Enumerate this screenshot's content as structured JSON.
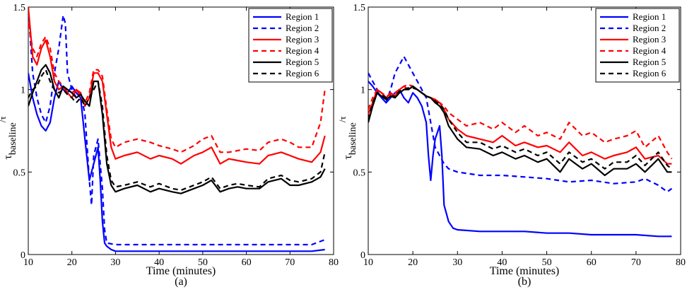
{
  "chart_data": [
    {
      "type": "line",
      "panel_label": "(a)",
      "xlabel": "Time (minutes)",
      "ylabel_main": "τ",
      "ylabel_sub": "baseline",
      "ylabel_tail": "/τ",
      "xlim": [
        10,
        80
      ],
      "ylim": [
        0,
        1.5
      ],
      "xticks": [
        10,
        20,
        30,
        40,
        50,
        60,
        70,
        80
      ],
      "yticks": [
        0,
        0.5,
        1,
        1.5
      ],
      "ytick_labels": [
        "0",
        "0.5",
        "1",
        "1.5"
      ],
      "legend_position": "top-right",
      "series": [
        {
          "name": "Region 1",
          "color": "#0000ff",
          "dash": "solid",
          "x": [
            10,
            11,
            12,
            13,
            14,
            15,
            16,
            17,
            18,
            19,
            20,
            21,
            22,
            23,
            24,
            25,
            26,
            26.5,
            27,
            27.5,
            28,
            29,
            30,
            35,
            40,
            45,
            50,
            55,
            60,
            65,
            70,
            75,
            78
          ],
          "y": [
            1.1,
            0.95,
            0.85,
            0.78,
            0.75,
            0.8,
            0.95,
            1.05,
            1.0,
            0.98,
            1.02,
            0.98,
            0.95,
            0.7,
            0.45,
            0.55,
            0.65,
            0.45,
            0.2,
            0.07,
            0.05,
            0.03,
            0.02,
            0.02,
            0.02,
            0.02,
            0.02,
            0.02,
            0.02,
            0.02,
            0.02,
            0.02,
            0.03
          ]
        },
        {
          "name": "Region 2",
          "color": "#0000ff",
          "dash": "dashed",
          "x": [
            10,
            11,
            12,
            13,
            14,
            15,
            16,
            17,
            18,
            18.5,
            19,
            20,
            21,
            22,
            23,
            24,
            24.5,
            25,
            26,
            27,
            27.5,
            28,
            30,
            35,
            40,
            45,
            50,
            55,
            60,
            65,
            70,
            75,
            78
          ],
          "y": [
            1.5,
            1.1,
            0.95,
            0.85,
            0.8,
            0.9,
            1.1,
            1.25,
            1.45,
            1.4,
            1.1,
            1.0,
            0.95,
            0.98,
            0.85,
            0.45,
            0.3,
            0.6,
            0.7,
            0.4,
            0.15,
            0.07,
            0.06,
            0.06,
            0.06,
            0.06,
            0.06,
            0.06,
            0.06,
            0.06,
            0.06,
            0.06,
            0.09
          ]
        },
        {
          "name": "Region 3",
          "color": "#ff0000",
          "dash": "solid",
          "x": [
            10,
            11,
            12,
            13,
            14,
            15,
            16,
            17,
            18,
            19,
            20,
            21,
            22,
            23,
            24,
            25,
            26,
            27,
            28,
            29,
            30,
            32,
            35,
            38,
            40,
            43,
            45,
            48,
            50,
            52,
            54,
            56,
            58,
            60,
            63,
            65,
            68,
            70,
            72,
            75,
            77,
            78
          ],
          "y": [
            1.5,
            1.2,
            1.15,
            1.25,
            1.3,
            1.2,
            1.05,
            1.0,
            1.02,
            0.98,
            0.95,
            1.0,
            0.98,
            0.9,
            0.95,
            1.1,
            1.1,
            1.05,
            0.85,
            0.65,
            0.58,
            0.6,
            0.62,
            0.58,
            0.6,
            0.58,
            0.55,
            0.6,
            0.62,
            0.65,
            0.55,
            0.58,
            0.57,
            0.56,
            0.55,
            0.6,
            0.62,
            0.6,
            0.58,
            0.56,
            0.62,
            0.72
          ]
        },
        {
          "name": "Region 4",
          "color": "#ff0000",
          "dash": "dashed",
          "x": [
            10,
            11,
            12,
            13,
            14,
            15,
            16,
            17,
            18,
            19,
            20,
            21,
            22,
            23,
            24,
            25,
            26,
            27,
            28,
            29,
            30,
            32,
            35,
            38,
            40,
            43,
            45,
            48,
            50,
            52,
            54,
            56,
            58,
            60,
            63,
            65,
            68,
            70,
            72,
            75,
            77,
            78
          ],
          "y": [
            1.4,
            1.25,
            1.2,
            1.28,
            1.32,
            1.25,
            1.1,
            1.05,
            1.02,
            1.0,
            0.98,
            1.0,
            0.96,
            0.92,
            0.98,
            1.12,
            1.12,
            1.08,
            0.88,
            0.7,
            0.65,
            0.68,
            0.7,
            0.68,
            0.66,
            0.64,
            0.62,
            0.66,
            0.7,
            0.72,
            0.62,
            0.62,
            0.63,
            0.64,
            0.63,
            0.68,
            0.7,
            0.68,
            0.65,
            0.65,
            0.8,
            1.0
          ]
        },
        {
          "name": "Region 5",
          "color": "#000000",
          "dash": "solid",
          "x": [
            10,
            11,
            12,
            13,
            14,
            15,
            16,
            17,
            18,
            19,
            20,
            21,
            22,
            23,
            24,
            25,
            26,
            27,
            28,
            29,
            30,
            32,
            35,
            38,
            40,
            43,
            45,
            48,
            50,
            52,
            54,
            56,
            58,
            60,
            63,
            65,
            68,
            70,
            72,
            75,
            77,
            78
          ],
          "y": [
            0.9,
            0.98,
            1.05,
            1.12,
            1.15,
            1.1,
            1.0,
            0.95,
            1.02,
            1.0,
            0.98,
            0.95,
            0.97,
            0.93,
            0.9,
            1.05,
            1.05,
            0.85,
            0.55,
            0.42,
            0.38,
            0.4,
            0.42,
            0.38,
            0.4,
            0.38,
            0.37,
            0.4,
            0.42,
            0.45,
            0.38,
            0.4,
            0.41,
            0.4,
            0.4,
            0.44,
            0.46,
            0.42,
            0.42,
            0.44,
            0.47,
            0.52
          ]
        },
        {
          "name": "Region 6",
          "color": "#000000",
          "dash": "dashed",
          "x": [
            10,
            11,
            12,
            13,
            14,
            15,
            16,
            17,
            18,
            19,
            20,
            21,
            22,
            23,
            24,
            25,
            26,
            27,
            28,
            29,
            30,
            32,
            35,
            38,
            40,
            43,
            45,
            48,
            50,
            52,
            54,
            56,
            58,
            60,
            63,
            65,
            68,
            70,
            72,
            75,
            77,
            78
          ],
          "y": [
            0.95,
            1.0,
            1.02,
            1.08,
            1.12,
            1.05,
            1.0,
            0.98,
            1.0,
            0.97,
            0.95,
            0.92,
            0.95,
            0.9,
            0.95,
            1.0,
            1.05,
            0.9,
            0.6,
            0.45,
            0.41,
            0.42,
            0.44,
            0.41,
            0.43,
            0.4,
            0.39,
            0.42,
            0.44,
            0.47,
            0.4,
            0.42,
            0.43,
            0.42,
            0.41,
            0.46,
            0.48,
            0.45,
            0.44,
            0.46,
            0.5,
            0.62
          ]
        }
      ]
    },
    {
      "type": "line",
      "panel_label": "(b)",
      "xlabel": "Time (minutes)",
      "ylabel_main": "τ",
      "ylabel_sub": "baseline",
      "ylabel_tail": "/τ",
      "xlim": [
        10,
        80
      ],
      "ylim": [
        0,
        1.5
      ],
      "xticks": [
        10,
        20,
        30,
        40,
        50,
        60,
        70,
        80
      ],
      "yticks": [
        0,
        0.5,
        1,
        1.5
      ],
      "ytick_labels": [
        "0",
        "0.5",
        "1",
        "1.5"
      ],
      "legend_position": "top-right",
      "series": [
        {
          "name": "Region 1",
          "color": "#0000ff",
          "dash": "solid",
          "x": [
            10,
            11,
            12,
            13,
            14,
            15,
            16,
            17,
            18,
            19,
            20,
            21,
            22,
            23,
            23.5,
            24,
            24.5,
            25,
            26,
            26.5,
            27,
            28,
            29,
            30,
            35,
            40,
            45,
            50,
            55,
            60,
            65,
            70,
            75,
            78
          ],
          "y": [
            1.05,
            1.02,
            0.98,
            0.95,
            0.92,
            0.95,
            0.98,
            1.0,
            0.95,
            0.92,
            0.98,
            0.95,
            0.9,
            0.8,
            0.6,
            0.45,
            0.6,
            0.7,
            0.78,
            0.6,
            0.3,
            0.2,
            0.16,
            0.15,
            0.14,
            0.14,
            0.14,
            0.13,
            0.13,
            0.12,
            0.12,
            0.12,
            0.11,
            0.11
          ]
        },
        {
          "name": "Region 2",
          "color": "#0000ff",
          "dash": "dashed",
          "x": [
            10,
            11,
            12,
            13,
            14,
            15,
            16,
            17,
            18,
            19,
            20,
            21,
            22,
            23,
            24,
            25,
            26,
            27,
            28,
            30,
            35,
            40,
            45,
            50,
            55,
            60,
            65,
            70,
            72,
            75,
            77,
            78
          ],
          "y": [
            1.1,
            1.05,
            1.0,
            0.95,
            0.92,
            1.0,
            1.1,
            1.15,
            1.2,
            1.15,
            1.1,
            1.05,
            1.0,
            0.95,
            0.8,
            0.65,
            0.6,
            0.55,
            0.52,
            0.5,
            0.48,
            0.48,
            0.47,
            0.46,
            0.44,
            0.45,
            0.43,
            0.44,
            0.46,
            0.42,
            0.38,
            0.4
          ]
        },
        {
          "name": "Region 3",
          "color": "#ff0000",
          "dash": "solid",
          "x": [
            10,
            11,
            12,
            13,
            14,
            15,
            16,
            17,
            18,
            19,
            20,
            21,
            22,
            23,
            24,
            25,
            26,
            27,
            28,
            30,
            32,
            35,
            38,
            40,
            43,
            45,
            48,
            50,
            53,
            55,
            58,
            60,
            63,
            65,
            68,
            70,
            72,
            75,
            77,
            78
          ],
          "y": [
            0.85,
            0.92,
            1.0,
            0.98,
            0.95,
            0.98,
            0.96,
            1.0,
            1.02,
            1.0,
            1.02,
            1.0,
            0.98,
            0.96,
            0.95,
            0.94,
            0.92,
            0.88,
            0.82,
            0.76,
            0.72,
            0.7,
            0.68,
            0.72,
            0.66,
            0.68,
            0.65,
            0.66,
            0.62,
            0.68,
            0.6,
            0.62,
            0.58,
            0.6,
            0.62,
            0.65,
            0.58,
            0.6,
            0.55,
            0.55
          ]
        },
        {
          "name": "Region 4",
          "color": "#ff0000",
          "dash": "dashed",
          "x": [
            10,
            11,
            12,
            13,
            14,
            15,
            16,
            17,
            18,
            19,
            20,
            21,
            22,
            23,
            24,
            25,
            26,
            27,
            28,
            30,
            32,
            35,
            38,
            40,
            43,
            45,
            48,
            50,
            53,
            55,
            58,
            60,
            63,
            65,
            68,
            70,
            72,
            75,
            77,
            78
          ],
          "y": [
            0.88,
            0.95,
            1.0,
            0.98,
            0.96,
            0.97,
            0.98,
            1.0,
            1.02,
            1.03,
            1.02,
            1.0,
            0.98,
            0.96,
            0.95,
            0.93,
            0.92,
            0.9,
            0.86,
            0.82,
            0.78,
            0.8,
            0.76,
            0.8,
            0.74,
            0.78,
            0.72,
            0.74,
            0.7,
            0.8,
            0.72,
            0.74,
            0.68,
            0.7,
            0.72,
            0.75,
            0.65,
            0.72,
            0.62,
            0.58
          ]
        },
        {
          "name": "Region 5",
          "color": "#000000",
          "dash": "solid",
          "x": [
            10,
            11,
            12,
            13,
            14,
            15,
            16,
            17,
            18,
            19,
            20,
            21,
            22,
            23,
            24,
            25,
            26,
            27,
            28,
            30,
            32,
            35,
            38,
            40,
            43,
            45,
            48,
            50,
            53,
            55,
            58,
            60,
            63,
            65,
            68,
            70,
            72,
            75,
            77,
            78
          ],
          "y": [
            0.8,
            0.9,
            0.98,
            0.96,
            0.94,
            0.96,
            0.95,
            0.98,
            1.0,
            1.0,
            1.02,
            1.0,
            0.98,
            0.96,
            0.95,
            0.92,
            0.9,
            0.86,
            0.78,
            0.7,
            0.65,
            0.64,
            0.6,
            0.62,
            0.58,
            0.6,
            0.56,
            0.58,
            0.5,
            0.58,
            0.52,
            0.55,
            0.48,
            0.52,
            0.52,
            0.55,
            0.5,
            0.58,
            0.5,
            0.5
          ]
        },
        {
          "name": "Region 6",
          "color": "#000000",
          "dash": "dashed",
          "x": [
            10,
            11,
            12,
            13,
            14,
            15,
            16,
            17,
            18,
            19,
            20,
            21,
            22,
            23,
            24,
            25,
            26,
            27,
            28,
            30,
            32,
            35,
            38,
            40,
            43,
            45,
            48,
            50,
            53,
            55,
            58,
            60,
            63,
            65,
            68,
            70,
            72,
            75,
            77,
            78
          ],
          "y": [
            0.82,
            0.92,
            0.98,
            0.97,
            0.95,
            0.96,
            0.96,
            0.99,
            1.0,
            1.01,
            1.01,
            1.0,
            0.98,
            0.96,
            0.95,
            0.93,
            0.91,
            0.88,
            0.82,
            0.74,
            0.68,
            0.68,
            0.64,
            0.66,
            0.62,
            0.64,
            0.6,
            0.62,
            0.55,
            0.62,
            0.56,
            0.58,
            0.52,
            0.56,
            0.56,
            0.6,
            0.54,
            0.62,
            0.54,
            0.52
          ]
        }
      ]
    }
  ]
}
